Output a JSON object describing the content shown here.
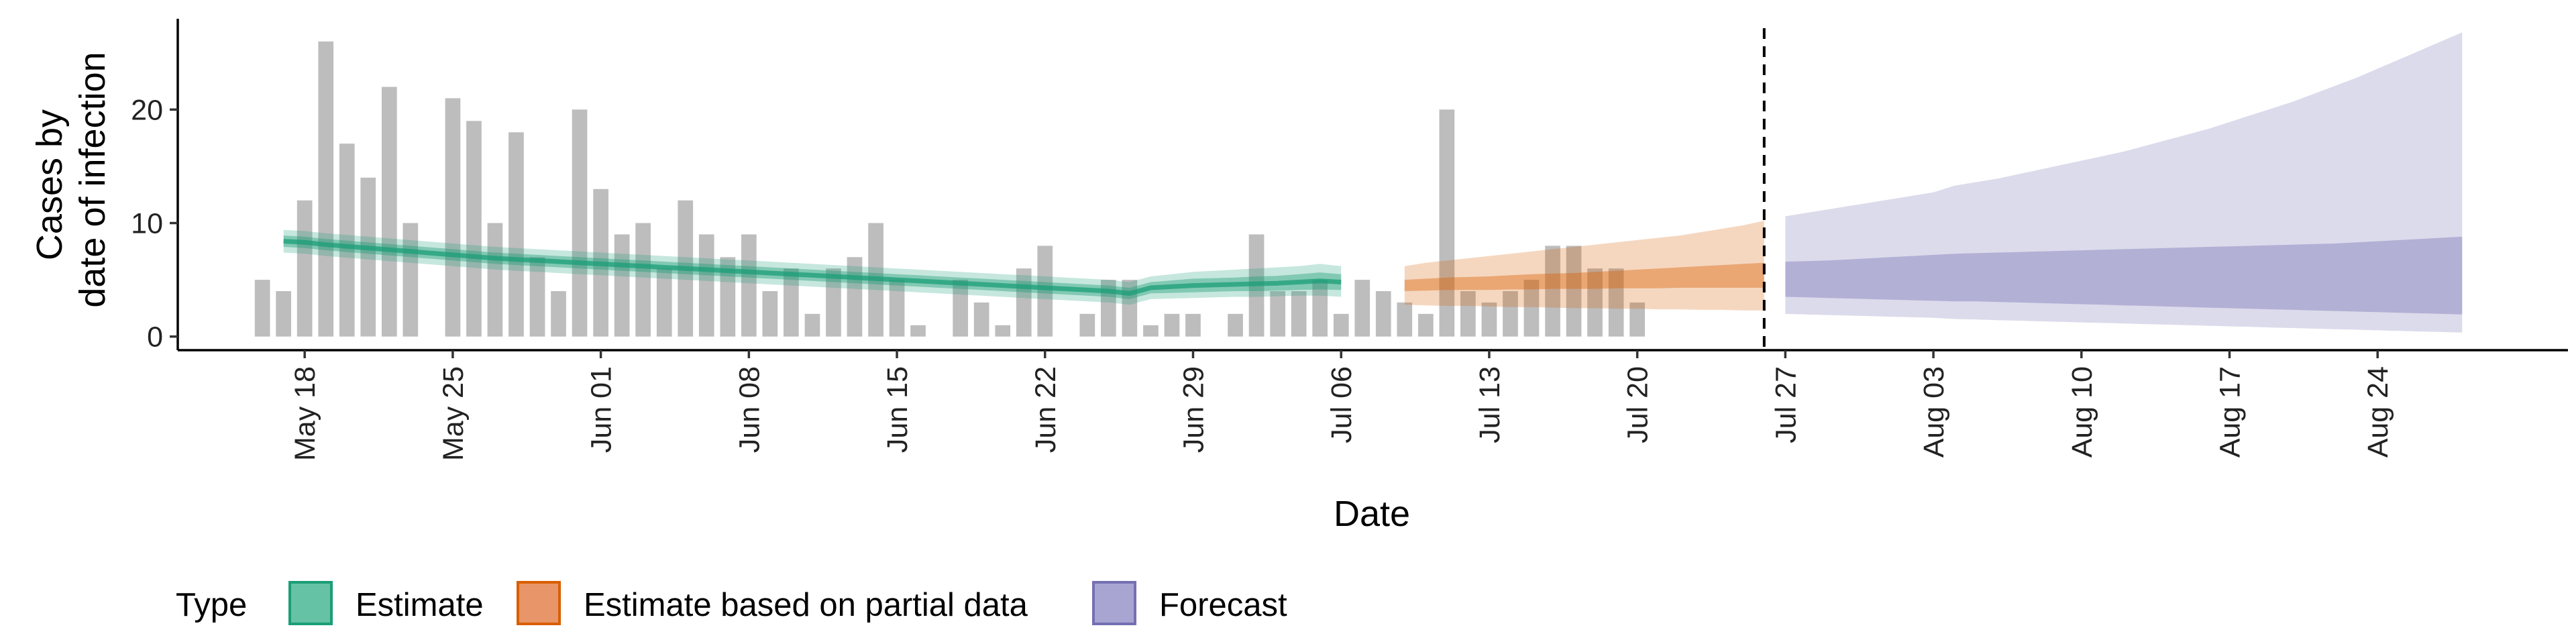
{
  "chart_data": {
    "type": "bar",
    "title": "",
    "xlabel": "Date",
    "ylabel_lines": [
      "Cases by",
      "date of infection"
    ],
    "yticks": [
      0,
      10,
      20
    ],
    "ylim": [
      -1.2,
      28
    ],
    "xlim": [
      "2020-05-12",
      "2020-09-02"
    ],
    "xticks": [
      "2020-05-18",
      "2020-05-25",
      "2020-06-01",
      "2020-06-08",
      "2020-06-15",
      "2020-06-22",
      "2020-06-29",
      "2020-07-06",
      "2020-07-13",
      "2020-07-20",
      "2020-07-27",
      "2020-08-03",
      "2020-08-10",
      "2020-08-17",
      "2020-08-24"
    ],
    "xtick_labels": [
      "May 18",
      "May 25",
      "Jun 01",
      "Jun 08",
      "Jun 15",
      "Jun 22",
      "Jun 29",
      "Jul 06",
      "Jul 13",
      "Jul 20",
      "Jul 27",
      "Aug 03",
      "Aug 10",
      "Aug 17",
      "Aug 24"
    ],
    "grid": false,
    "forecast_start_line": "2020-07-26",
    "bars": {
      "start": "2020-05-16",
      "color": "#bdbdbd",
      "values": [
        5,
        4,
        12,
        26,
        17,
        14,
        22,
        10,
        0,
        21,
        19,
        10,
        18,
        7,
        4,
        20,
        13,
        9,
        10,
        6,
        12,
        9,
        7,
        9,
        4,
        6,
        2,
        6,
        7,
        10,
        5,
        1,
        0,
        5,
        3,
        1,
        6,
        8,
        0,
        2,
        5,
        5,
        1,
        2,
        2,
        0,
        2,
        9,
        4,
        4,
        5,
        2,
        5,
        4,
        3,
        2,
        20,
        4,
        3,
        4,
        5,
        8,
        8,
        6,
        6,
        3
      ]
    },
    "legend": {
      "title": "Type",
      "position": "bottom",
      "items": [
        {
          "label": "Estimate",
          "fill": "#66c2a5",
          "stroke": "#1b9e77"
        },
        {
          "label": "Estimate based on partial data",
          "fill": "#e8956a",
          "stroke": "#d95f02"
        },
        {
          "label": "Forecast",
          "fill": "#a8a5d3",
          "stroke": "#7570b3"
        }
      ]
    },
    "series": [
      {
        "name": "Estimate",
        "color": "#1b9e77",
        "start": "2020-05-17",
        "median": [
          8.4,
          8.3,
          8.1,
          7.95,
          7.8,
          7.65,
          7.5,
          7.35,
          7.2,
          7.05,
          6.9,
          6.8,
          6.7,
          6.6,
          6.5,
          6.4,
          6.3,
          6.2,
          6.1,
          6.0,
          5.9,
          5.8,
          5.7,
          5.6,
          5.5,
          5.4,
          5.3,
          5.2,
          5.1,
          5.0,
          4.9,
          4.8,
          4.7,
          4.6,
          4.5,
          4.4,
          4.3,
          4.2,
          4.1,
          4.0,
          3.8,
          4.3,
          4.4,
          4.5,
          4.55,
          4.6,
          4.65,
          4.7,
          4.8,
          4.9,
          4.8
        ],
        "lower50": [
          7.9,
          7.8,
          7.6,
          7.45,
          7.3,
          7.15,
          7.0,
          6.85,
          6.7,
          6.55,
          6.4,
          6.3,
          6.2,
          6.1,
          6.0,
          5.9,
          5.8,
          5.7,
          5.6,
          5.5,
          5.4,
          5.3,
          5.2,
          5.1,
          5.0,
          4.9,
          4.8,
          4.7,
          4.6,
          4.5,
          4.4,
          4.3,
          4.2,
          4.1,
          4.0,
          3.9,
          3.8,
          3.7,
          3.6,
          3.5,
          3.3,
          3.8,
          3.85,
          3.9,
          3.95,
          4.0,
          4.0,
          4.05,
          4.1,
          4.15,
          4.1
        ],
        "upper50": [
          8.9,
          8.8,
          8.6,
          8.45,
          8.3,
          8.15,
          8.0,
          7.85,
          7.7,
          7.55,
          7.4,
          7.3,
          7.2,
          7.1,
          7.0,
          6.9,
          6.8,
          6.7,
          6.6,
          6.5,
          6.4,
          6.3,
          6.2,
          6.1,
          6.0,
          5.9,
          5.8,
          5.7,
          5.6,
          5.5,
          5.4,
          5.3,
          5.2,
          5.1,
          5.0,
          4.9,
          4.8,
          4.7,
          4.6,
          4.5,
          4.3,
          4.8,
          4.95,
          5.1,
          5.15,
          5.2,
          5.3,
          5.35,
          5.5,
          5.65,
          5.5
        ],
        "lower90": [
          7.4,
          7.3,
          7.1,
          6.95,
          6.8,
          6.65,
          6.5,
          6.35,
          6.2,
          6.05,
          5.9,
          5.8,
          5.7,
          5.6,
          5.5,
          5.4,
          5.3,
          5.2,
          5.1,
          5.0,
          4.9,
          4.8,
          4.7,
          4.6,
          4.5,
          4.4,
          4.3,
          4.2,
          4.1,
          4.0,
          3.9,
          3.8,
          3.7,
          3.6,
          3.5,
          3.4,
          3.3,
          3.2,
          3.1,
          3.0,
          2.8,
          3.3,
          3.35,
          3.4,
          3.45,
          3.5,
          3.5,
          3.55,
          3.6,
          3.6,
          3.5
        ],
        "upper90": [
          9.4,
          9.3,
          9.1,
          8.95,
          8.8,
          8.65,
          8.5,
          8.35,
          8.2,
          8.05,
          7.9,
          7.8,
          7.7,
          7.6,
          7.5,
          7.4,
          7.3,
          7.2,
          7.1,
          7.0,
          6.9,
          6.8,
          6.7,
          6.6,
          6.5,
          6.4,
          6.3,
          6.2,
          6.1,
          6.0,
          5.9,
          5.8,
          5.7,
          5.6,
          5.5,
          5.4,
          5.3,
          5.2,
          5.1,
          5.0,
          4.8,
          5.3,
          5.5,
          5.7,
          5.8,
          5.9,
          6.0,
          6.1,
          6.2,
          6.4,
          6.2
        ]
      },
      {
        "name": "Estimate based on partial data",
        "color": "#d95f02",
        "start": "2020-07-09",
        "lower50": [
          4.0,
          4.05,
          4.1,
          4.1,
          4.1,
          4.15,
          4.15,
          4.2,
          4.2,
          4.2,
          4.25,
          4.25,
          4.25,
          4.3,
          4.3,
          4.3,
          4.3,
          4.3
        ],
        "upper50": [
          5.0,
          5.1,
          5.2,
          5.25,
          5.3,
          5.4,
          5.5,
          5.55,
          5.6,
          5.7,
          5.8,
          5.9,
          6.0,
          6.1,
          6.2,
          6.3,
          6.4,
          6.5
        ],
        "lower90": [
          2.8,
          2.75,
          2.7,
          2.7,
          2.65,
          2.6,
          2.6,
          2.55,
          2.5,
          2.5,
          2.45,
          2.45,
          2.4,
          2.4,
          2.35,
          2.35,
          2.3,
          2.3
        ],
        "upper90": [
          6.2,
          6.5,
          6.7,
          6.9,
          7.1,
          7.3,
          7.5,
          7.7,
          7.9,
          8.1,
          8.3,
          8.5,
          8.7,
          8.9,
          9.2,
          9.5,
          9.8,
          10.2
        ]
      },
      {
        "name": "Forecast",
        "color": "#7570b3",
        "start": "2020-07-27",
        "lower50": [
          3.5,
          3.45,
          3.4,
          3.35,
          3.3,
          3.25,
          3.2,
          3.15,
          3.1,
          3.1,
          3.05,
          3.0,
          2.95,
          2.9,
          2.85,
          2.8,
          2.75,
          2.7,
          2.65,
          2.6,
          2.55,
          2.5,
          2.45,
          2.4,
          2.35,
          2.3,
          2.25,
          2.2,
          2.15,
          2.1,
          2.05,
          2.0,
          1.95
        ],
        "upper50": [
          6.6,
          6.65,
          6.7,
          6.8,
          6.9,
          7.0,
          7.1,
          7.2,
          7.3,
          7.35,
          7.4,
          7.45,
          7.5,
          7.55,
          7.6,
          7.65,
          7.7,
          7.75,
          7.8,
          7.85,
          7.9,
          7.95,
          8.0,
          8.05,
          8.1,
          8.15,
          8.2,
          8.3,
          8.4,
          8.5,
          8.6,
          8.7,
          8.8
        ],
        "lower90": [
          2.0,
          1.95,
          1.9,
          1.85,
          1.8,
          1.75,
          1.7,
          1.65,
          1.55,
          1.5,
          1.45,
          1.4,
          1.35,
          1.3,
          1.25,
          1.2,
          1.15,
          1.1,
          1.05,
          1.0,
          0.95,
          0.9,
          0.85,
          0.8,
          0.75,
          0.7,
          0.65,
          0.6,
          0.55,
          0.5,
          0.45,
          0.4,
          0.35
        ],
        "upper90": [
          10.6,
          10.9,
          11.2,
          11.5,
          11.8,
          12.1,
          12.4,
          12.7,
          13.3,
          13.6,
          13.9,
          14.3,
          14.7,
          15.1,
          15.5,
          15.9,
          16.3,
          16.8,
          17.3,
          17.8,
          18.3,
          18.9,
          19.5,
          20.1,
          20.7,
          21.4,
          22.1,
          22.8,
          23.6,
          24.4,
          25.2,
          26.0,
          26.8
        ]
      }
    ]
  }
}
